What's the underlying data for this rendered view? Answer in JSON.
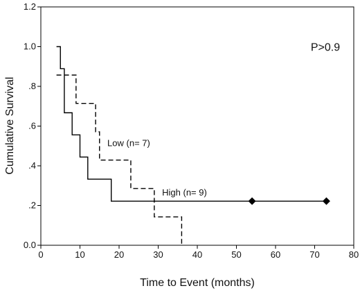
{
  "chart_data": {
    "type": "line",
    "title": "",
    "xlabel": "Time to Event (months)",
    "ylabel": "Cumulative Survival",
    "xlim": [
      0,
      80
    ],
    "ylim": [
      0,
      1.2
    ],
    "x_ticks": [
      {
        "value": 0,
        "label": "0"
      },
      {
        "value": 10,
        "label": "10"
      },
      {
        "value": 20,
        "label": "20"
      },
      {
        "value": 30,
        "label": "30"
      },
      {
        "value": 40,
        "label": "40"
      },
      {
        "value": 50,
        "label": "50"
      },
      {
        "value": 60,
        "label": "60"
      },
      {
        "value": 70,
        "label": "70"
      },
      {
        "value": 80,
        "label": "80"
      }
    ],
    "y_ticks": [
      {
        "value": 0,
        "label": "0.0"
      },
      {
        "value": 0.2,
        "label": ".2"
      },
      {
        "value": 0.4,
        "label": ".4"
      },
      {
        "value": 0.6,
        "label": ".6"
      },
      {
        "value": 0.8,
        "label": ".8"
      },
      {
        "value": 1.0,
        "label": "1.0"
      },
      {
        "value": 1.2,
        "label": "1.2"
      }
    ],
    "grid": false,
    "legend": "none",
    "series": [
      {
        "name": "High (n= 9)",
        "style": "solid",
        "color": "#000000",
        "steps": [
          [
            4,
            1.0
          ],
          [
            5,
            0.889
          ],
          [
            6,
            0.667
          ],
          [
            8,
            0.556
          ],
          [
            10,
            0.444
          ],
          [
            12,
            0.333
          ],
          [
            18,
            0.222
          ],
          [
            73,
            0.222
          ]
        ],
        "censored": [
          [
            54,
            0.222
          ],
          [
            73,
            0.222
          ]
        ]
      },
      {
        "name": "Low (n= 7)",
        "style": "dashed",
        "color": "#000000",
        "steps": [
          [
            4,
            0.857
          ],
          [
            9,
            0.714
          ],
          [
            14,
            0.571
          ],
          [
            15,
            0.429
          ],
          [
            23,
            0.286
          ],
          [
            29,
            0.143
          ],
          [
            36,
            0.0
          ]
        ],
        "censored": []
      }
    ],
    "annotations": [
      {
        "id": "pvalue",
        "text": "P>0.9",
        "x": 69,
        "y": 0.98
      },
      {
        "id": "low",
        "text": "Low (n= 7)",
        "x": 17,
        "y": 0.5
      },
      {
        "id": "high",
        "text": "High (n= 9)",
        "x": 31,
        "y": 0.25
      }
    ]
  }
}
